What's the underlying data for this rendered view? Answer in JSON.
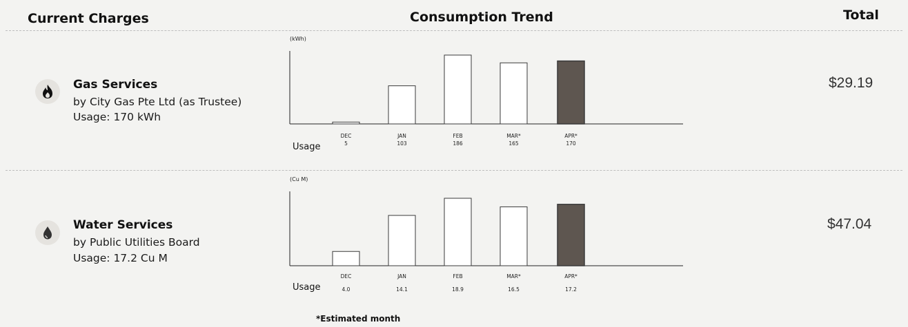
{
  "header": {
    "current_charges": "Current Charges",
    "consumption_trend": "Consumption Trend",
    "total": "Total"
  },
  "services": [
    {
      "name": "Gas Services",
      "provider": "by City Gas Pte Ltd (as Trustee)",
      "usage": "Usage: 170 kWh",
      "total": "$29.19",
      "icon": "flame-icon"
    },
    {
      "name": "Water Services",
      "provider": "by Public Utilities Board",
      "usage": "Usage: 17.2 Cu M",
      "total": "$47.04",
      "icon": "water-drop-icon"
    }
  ],
  "chart_data": [
    {
      "type": "bar",
      "unit": "(kWh)",
      "row_label": "Usage",
      "categories": [
        "DEC",
        "JAN",
        "FEB",
        "MAR*",
        "APR*"
      ],
      "value_labels": [
        "5",
        "103",
        "186",
        "165",
        "170"
      ],
      "values": [
        5,
        103,
        186,
        165,
        170
      ],
      "highlight_index": 4,
      "colors": {
        "bar_fill": "#ffffff",
        "highlight_fill": "#5e5650",
        "stroke": "#3a3a3a"
      }
    },
    {
      "type": "bar",
      "unit": "(Cu M)",
      "row_label": "Usage",
      "categories": [
        "DEC",
        "JAN",
        "FEB",
        "MAR*",
        "APR*"
      ],
      "value_labels": [
        "4.0",
        "14.1",
        "18.9",
        "16.5",
        "17.2"
      ],
      "values": [
        4.0,
        14.1,
        18.9,
        16.5,
        17.2
      ],
      "highlight_index": 4,
      "colors": {
        "bar_fill": "#ffffff",
        "highlight_fill": "#5e5650",
        "stroke": "#3a3a3a"
      }
    }
  ],
  "footnote": "*Estimated month"
}
